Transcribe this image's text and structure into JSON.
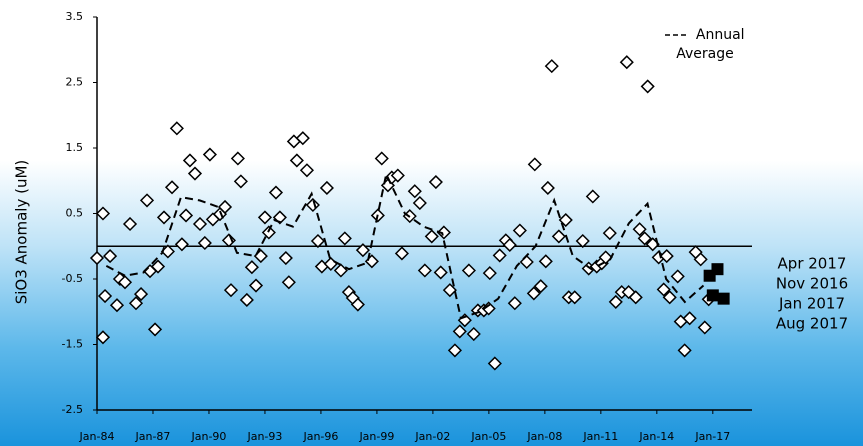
{
  "chart_data": {
    "type": "scatter",
    "y_label": "SiO3 Anomaly (uM)",
    "xlim": [
      1984,
      2019.1
    ],
    "xticks": [
      {
        "value": 1984,
        "label": "Jan-84"
      },
      {
        "value": 1987,
        "label": "Jan-87"
      },
      {
        "value": 1990,
        "label": "Jan-90"
      },
      {
        "value": 1993,
        "label": "Jan-93"
      },
      {
        "value": 1996,
        "label": "Jan-96"
      },
      {
        "value": 1999,
        "label": "Jan-99"
      },
      {
        "value": 2002,
        "label": "Jan-02"
      },
      {
        "value": 2005,
        "label": "Jan-05"
      },
      {
        "value": 2008,
        "label": "Jan-08"
      },
      {
        "value": 2011,
        "label": "Jan-11"
      },
      {
        "value": 2014,
        "label": "Jan-14"
      },
      {
        "value": 2017,
        "label": "Jan-17"
      }
    ],
    "ylim": [
      -2.5,
      3.5
    ],
    "yticks": [
      -2.5,
      -1.5,
      -0.5,
      0.5,
      1.5,
      2.5,
      3.5
    ],
    "zero_line": true,
    "series": [
      {
        "marker": "diamond",
        "color": "#000000",
        "x": [
          1984.0,
          1984.32,
          1984.32,
          1984.43,
          1984.7,
          1985.07,
          1985.23,
          1985.5,
          1985.77,
          1986.09,
          1986.36,
          1986.68,
          1986.84,
          1987.11,
          1987.27,
          1987.59,
          1987.8,
          1988.02,
          1988.28,
          1988.55,
          1988.77,
          1988.98,
          1989.25,
          1989.52,
          1989.78,
          1990.05,
          1990.21,
          1990.59,
          1990.86,
          1991.07,
          1991.18,
          1991.55,
          1991.71,
          1992.03,
          1992.3,
          1992.52,
          1992.78,
          1993.0,
          1993.21,
          1993.59,
          1993.8,
          1994.12,
          1994.28,
          1994.55,
          1994.71,
          1995.03,
          1995.25,
          1995.57,
          1995.84,
          1996.05,
          1996.32,
          1996.53,
          1997.07,
          1997.28,
          1997.5,
          1997.71,
          1997.98,
          1998.25,
          1998.73,
          1999.05,
          1999.26,
          1999.59,
          1999.8,
          2000.12,
          2000.34,
          2000.76,
          2001.03,
          2001.3,
          2001.57,
          2001.94,
          2002.16,
          2002.42,
          2002.59,
          2002.91,
          2003.18,
          2003.44,
          2003.71,
          2003.93,
          2004.19,
          2004.41,
          2004.73,
          2004.99,
          2005.05,
          2005.32,
          2005.58,
          2005.91,
          2006.12,
          2006.39,
          2006.66,
          2007.03,
          2007.41,
          2007.46,
          2007.78,
          2008.05,
          2008.16,
          2008.37,
          2008.75,
          2009.12,
          2009.28,
          2009.6,
          2010.03,
          2010.35,
          2010.57,
          2010.78,
          2011.05,
          2011.26,
          2011.48,
          2011.8,
          2012.12,
          2012.39,
          2012.49,
          2012.87,
          2013.08,
          2013.35,
          2013.51,
          2013.78,
          2014.1,
          2014.37,
          2014.53,
          2014.69,
          2015.12,
          2015.28,
          2015.49,
          2015.76,
          2016.08,
          2016.35,
          2016.57,
          2016.78
        ],
        "values": [
          -0.18,
          -1.39,
          0.5,
          -0.76,
          -0.15,
          -0.9,
          -0.5,
          -0.55,
          0.34,
          -0.87,
          -0.73,
          0.7,
          -0.38,
          -1.27,
          -0.31,
          0.44,
          -0.08,
          0.9,
          1.8,
          0.03,
          0.47,
          1.31,
          1.11,
          0.34,
          0.05,
          1.4,
          0.41,
          0.49,
          0.6,
          0.09,
          -0.67,
          1.34,
          0.99,
          -0.82,
          -0.32,
          -0.6,
          -0.15,
          0.44,
          0.21,
          0.82,
          0.44,
          -0.18,
          -0.55,
          1.6,
          1.31,
          1.65,
          1.16,
          0.63,
          0.08,
          -0.31,
          0.89,
          -0.27,
          -0.37,
          0.12,
          -0.7,
          -0.79,
          -0.89,
          -0.06,
          -0.23,
          0.47,
          1.34,
          0.93,
          1.05,
          1.08,
          -0.11,
          0.46,
          0.84,
          0.66,
          -0.37,
          0.15,
          0.98,
          -0.4,
          0.21,
          -0.67,
          -1.59,
          -1.3,
          -1.13,
          -0.37,
          -1.34,
          -0.98,
          -0.98,
          -0.95,
          -0.41,
          -1.79,
          -0.14,
          0.09,
          0.02,
          -0.87,
          0.24,
          -0.24,
          -0.72,
          1.25,
          -0.61,
          -0.23,
          0.89,
          2.75,
          0.15,
          0.4,
          -0.78,
          -0.78,
          0.08,
          -0.34,
          0.76,
          -0.31,
          -0.26,
          -0.17,
          0.2,
          -0.85,
          -0.7,
          2.81,
          -0.7,
          -0.78,
          0.26,
          0.12,
          2.44,
          0.03,
          -0.17,
          -0.66,
          -0.15,
          -0.78,
          -0.46,
          -1.15,
          -1.59,
          -1.1,
          -0.09,
          -0.2,
          -1.24,
          -0.81
        ]
      },
      {
        "name": "Annual Average",
        "marker": "dashed-line",
        "color": "#000000",
        "x": [
          1984.5,
          1985.5,
          1986.5,
          1987.5,
          1988.5,
          1989.5,
          1990.5,
          1991.5,
          1992.5,
          1993.5,
          1994.5,
          1995.5,
          1996.5,
          1997.5,
          1998.5,
          1999.5,
          2000.5,
          2001.5,
          2002.5,
          2003.5,
          2004.5,
          2005.5,
          2006.5,
          2007.5,
          2008.5,
          2009.5,
          2010.5,
          2011.5,
          2012.5,
          2013.5,
          2014.5,
          2015.5,
          2016.5
        ],
        "values": [
          -0.3,
          -0.45,
          -0.4,
          -0.1,
          0.75,
          0.7,
          0.6,
          -0.1,
          -0.15,
          0.4,
          0.3,
          0.8,
          -0.2,
          -0.35,
          -0.25,
          1.1,
          0.5,
          0.3,
          0.2,
          -1.1,
          -1.0,
          -0.8,
          -0.3,
          0.0,
          0.7,
          -0.15,
          -0.35,
          -0.2,
          0.35,
          0.65,
          -0.5,
          -0.85,
          -0.6
        ]
      },
      {
        "marker": "square",
        "color": "#000000",
        "x": [
          2017.25,
          2016.83,
          2017.0,
          2017.58
        ],
        "values": [
          -0.35,
          -0.45,
          -0.75,
          -0.8
        ],
        "labels": [
          "Apr 2017",
          "Nov 2016",
          "Jan 2017",
          "Aug 2017"
        ]
      }
    ]
  }
}
